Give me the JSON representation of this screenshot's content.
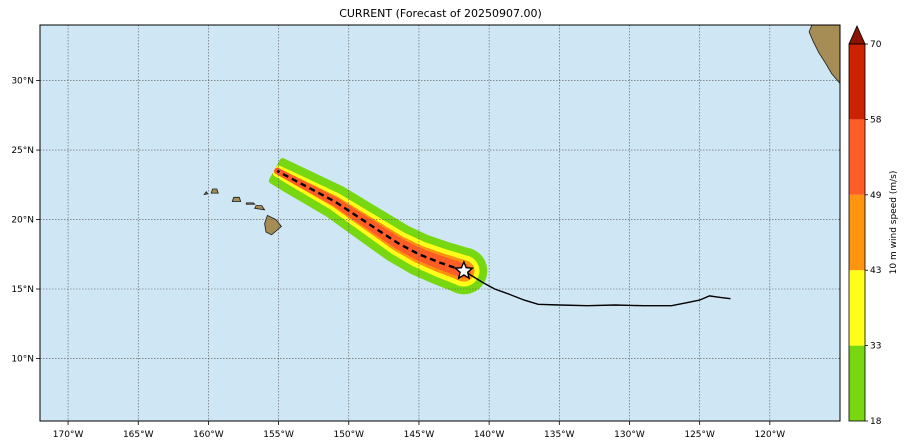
{
  "title": "CURRENT (Forecast of 20250907.00)",
  "map": {
    "lon_range": [
      -172,
      -115
    ],
    "lat_range": [
      5.5,
      34
    ],
    "lon_ticks": [
      {
        "value": -170,
        "label": "170°W"
      },
      {
        "value": -165,
        "label": "165°W"
      },
      {
        "value": -160,
        "label": "160°W"
      },
      {
        "value": -155,
        "label": "155°W"
      },
      {
        "value": -150,
        "label": "150°W"
      },
      {
        "value": -145,
        "label": "145°W"
      },
      {
        "value": -140,
        "label": "140°W"
      },
      {
        "value": -135,
        "label": "135°W"
      },
      {
        "value": -130,
        "label": "130°W"
      },
      {
        "value": -125,
        "label": "125°W"
      },
      {
        "value": -120,
        "label": "120°W"
      }
    ],
    "lat_ticks": [
      {
        "value": 10,
        "label": "10°N"
      },
      {
        "value": 15,
        "label": "15°N"
      },
      {
        "value": 20,
        "label": "20°N"
      },
      {
        "value": 25,
        "label": "25°N"
      },
      {
        "value": 30,
        "label": "30°N"
      }
    ],
    "ocean_color": "#cfe6f5",
    "storm_position": {
      "lon": -141.8,
      "lat": 16.3
    },
    "past_track": [
      [
        -122.8,
        14.3
      ],
      [
        -123.6,
        14.4
      ],
      [
        -124.3,
        14.5
      ],
      [
        -125.0,
        14.2
      ],
      [
        -126.0,
        14.0
      ],
      [
        -127.0,
        13.8
      ],
      [
        -129.0,
        13.8
      ],
      [
        -131.0,
        13.85
      ],
      [
        -133.0,
        13.8
      ],
      [
        -135.0,
        13.85
      ],
      [
        -136.5,
        13.9
      ],
      [
        -137.5,
        14.2
      ],
      [
        -138.5,
        14.6
      ],
      [
        -139.6,
        15.0
      ],
      [
        -140.5,
        15.5
      ],
      [
        -141.8,
        16.3
      ]
    ],
    "forecast_track": [
      [
        -141.8,
        16.3
      ],
      [
        -143.5,
        16.9
      ],
      [
        -145.0,
        17.5
      ],
      [
        -146.5,
        18.3
      ],
      [
        -148.0,
        19.3
      ],
      [
        -149.5,
        20.3
      ],
      [
        -151.0,
        21.3
      ],
      [
        -152.5,
        22.1
      ],
      [
        -154.0,
        22.9
      ],
      [
        -155.1,
        23.5
      ]
    ],
    "wind_swath_bands": [
      {
        "color": "#77d811",
        "halfwidth_deg": [
          1.45,
          0.8
        ]
      },
      {
        "color": "#ffff1a",
        "halfwidth_deg": [
          0.9,
          0.2
        ]
      },
      {
        "color": "#ff9410",
        "halfwidth_deg": [
          0.55,
          0.0
        ]
      },
      {
        "color": "#ff5c26",
        "halfwidth_deg": [
          0.3,
          0.0
        ]
      }
    ],
    "islands": [
      {
        "name": "hawaii",
        "points": [
          [
            -155.9,
            19.1
          ],
          [
            -155.5,
            18.9
          ],
          [
            -154.8,
            19.5
          ],
          [
            -155.2,
            20.0
          ],
          [
            -155.8,
            20.3
          ],
          [
            -156.0,
            19.7
          ]
        ]
      },
      {
        "name": "maui",
        "points": [
          [
            -156.7,
            20.8
          ],
          [
            -156.0,
            20.7
          ],
          [
            -156.2,
            21.0
          ],
          [
            -156.6,
            21.0
          ]
        ]
      },
      {
        "name": "molokai",
        "points": [
          [
            -157.3,
            21.1
          ],
          [
            -156.7,
            21.1
          ],
          [
            -156.8,
            21.2
          ],
          [
            -157.3,
            21.2
          ]
        ]
      },
      {
        "name": "oahu",
        "points": [
          [
            -158.3,
            21.3
          ],
          [
            -157.7,
            21.3
          ],
          [
            -157.8,
            21.6
          ],
          [
            -158.2,
            21.6
          ]
        ]
      },
      {
        "name": "kauai",
        "points": [
          [
            -159.8,
            21.9
          ],
          [
            -159.3,
            21.9
          ],
          [
            -159.4,
            22.2
          ],
          [
            -159.7,
            22.2
          ]
        ]
      },
      {
        "name": "niihau",
        "points": [
          [
            -160.3,
            21.8
          ],
          [
            -160.05,
            21.85
          ],
          [
            -160.15,
            22.0
          ]
        ]
      },
      {
        "name": "california",
        "points": [
          [
            -117.0,
            34.0
          ],
          [
            -117.2,
            33.5
          ],
          [
            -116.9,
            32.8
          ],
          [
            -116.5,
            32.0
          ],
          [
            -116.0,
            31.2
          ],
          [
            -115.6,
            30.5
          ],
          [
            -115.0,
            29.8
          ],
          [
            -115.0,
            34.0
          ]
        ]
      }
    ]
  },
  "colorbar": {
    "label": "10 m wind speed (m/s)",
    "levels": [
      18,
      33,
      43,
      49,
      58,
      70
    ],
    "tick_labels": [
      "18",
      "33",
      "43",
      "49",
      "58",
      "70"
    ],
    "colors": [
      "#77d811",
      "#ffff1a",
      "#ff9410",
      "#ff5c26",
      "#cc2200"
    ],
    "extend_color": "#8b1400"
  }
}
